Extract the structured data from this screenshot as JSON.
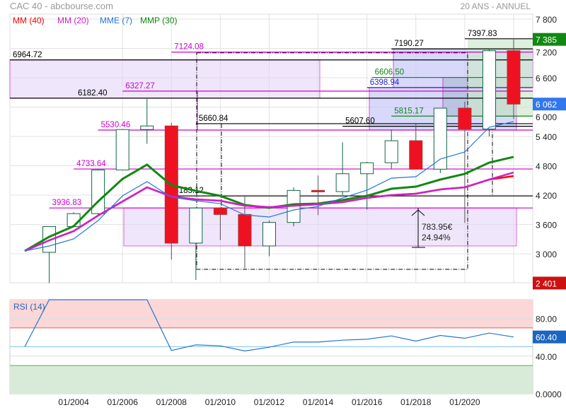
{
  "header": {
    "title": "CAC 40 - abcbourse.com",
    "period": "20 ANS - ANNUEL"
  },
  "legend": [
    {
      "label": "MM (40)",
      "color": "#ff0000"
    },
    {
      "label": "MM (20)",
      "color": "#cc22cc"
    },
    {
      "label": "MME (7)",
      "color": "#2277dd"
    },
    {
      "label": "MMP (30)",
      "color": "#118811"
    }
  ],
  "chart_data": [
    {
      "type": "candlestick",
      "title": "CAC 40",
      "yticks": [
        "7 800",
        "7 200",
        "6 600",
        "6 000",
        "5 400",
        "4 800",
        "4 200",
        "3 600",
        "3 000"
      ],
      "ytick_values": [
        7800,
        7200,
        6600,
        6000,
        5400,
        4800,
        4200,
        3600,
        3000
      ],
      "ylim": [
        2401,
        7900
      ],
      "xticks": [
        "01/2004",
        "01/2006",
        "01/2008",
        "01/2010",
        "01/2012",
        "01/2014",
        "01/2016",
        "01/2018",
        "01/2020"
      ],
      "grid": true,
      "candles": [
        {
          "year": 2003,
          "o": 3030,
          "h": 3560,
          "l": 2401,
          "c": 3557
        },
        {
          "year": 2004,
          "o": 3557,
          "h": 3850,
          "l": 3540,
          "c": 3821
        },
        {
          "year": 2005,
          "o": 3821,
          "h": 4740,
          "l": 3800,
          "c": 4715
        },
        {
          "year": 2006,
          "o": 4715,
          "h": 5541,
          "l": 4740,
          "c": 5541
        },
        {
          "year": 2007,
          "o": 5541,
          "h": 6168,
          "l": 5250,
          "c": 5614
        },
        {
          "year": 2008,
          "o": 5614,
          "h": 5680,
          "l": 2880,
          "c": 3218
        },
        {
          "year": 2009,
          "o": 3218,
          "h": 3936,
          "l": 2465,
          "c": 3936
        },
        {
          "year": 2010,
          "o": 3936,
          "h": 3950,
          "l": 3280,
          "c": 3804
        },
        {
          "year": 2011,
          "o": 3804,
          "h": 4170,
          "l": 2700,
          "c": 3160
        },
        {
          "year": 2012,
          "o": 3160,
          "h": 3680,
          "l": 2950,
          "c": 3641
        },
        {
          "year": 2013,
          "o": 3641,
          "h": 4360,
          "l": 3560,
          "c": 4296
        },
        {
          "year": 2014,
          "o": 4296,
          "h": 4600,
          "l": 3790,
          "c": 4272
        },
        {
          "year": 2015,
          "o": 4272,
          "h": 5280,
          "l": 4200,
          "c": 4637
        },
        {
          "year": 2016,
          "o": 4637,
          "h": 4880,
          "l": 3900,
          "c": 4862
        },
        {
          "year": 2017,
          "o": 4862,
          "h": 5540,
          "l": 4740,
          "c": 5312
        },
        {
          "year": 2018,
          "o": 5312,
          "h": 5660,
          "l": 4730,
          "c": 4730
        },
        {
          "year": 2019,
          "o": 4730,
          "h": 5978,
          "l": 4650,
          "c": 5978
        },
        {
          "year": 2020,
          "o": 5978,
          "h": 6110,
          "l": 3630,
          "c": 5551
        },
        {
          "year": 2021,
          "o": 5551,
          "h": 7190,
          "l": 5400,
          "c": 7153
        },
        {
          "year": 2022,
          "o": 7153,
          "h": 7385,
          "l": 5756,
          "c": 6062
        }
      ],
      "series": [
        {
          "name": "MMP (30)",
          "color": "#118811",
          "years": [
            2002,
            2003,
            2004,
            2005,
            2006,
            2007,
            2008,
            2009,
            2010,
            2011,
            2012,
            2013,
            2014,
            2015,
            2016,
            2017,
            2018,
            2019,
            2020,
            2021,
            2022
          ],
          "values": [
            3058,
            3347,
            3564,
            4070,
            4532,
            4822,
            4402,
            4287,
            4185,
            3998,
            3940,
            4012,
            4026,
            4099,
            4185,
            4330,
            4373,
            4518,
            4634,
            4865,
            4981
          ]
        },
        {
          "name": "MM (40)",
          "color": "#ff0000",
          "years": [
            2002,
            2003,
            2004,
            2005,
            2006,
            2007,
            2008,
            2009,
            2010,
            2011,
            2012,
            2013,
            2014,
            2015,
            2016,
            2017,
            2018,
            2019,
            2020,
            2021,
            2022
          ],
          "values": [
            3058,
            3275,
            3463,
            3781,
            4070,
            4359,
            4171,
            4113,
            4084,
            3983,
            3954,
            3983,
            4012,
            4055,
            4142,
            4200,
            4229,
            4316,
            4359,
            4518,
            4590
          ]
        },
        {
          "name": "MM (20)",
          "color": "#cc22cc",
          "years": [
            2002,
            2003,
            2004,
            2005,
            2006,
            2007,
            2008,
            2009,
            2010,
            2011,
            2012,
            2013,
            2014,
            2015,
            2016,
            2017,
            2018,
            2019,
            2020,
            2021,
            2022
          ],
          "values": [
            3058,
            3275,
            3463,
            3781,
            4070,
            4359,
            4171,
            4113,
            4084,
            3983,
            3954,
            3983,
            4012,
            4055,
            4142,
            4200,
            4229,
            4316,
            4359,
            4518,
            4663
          ]
        },
        {
          "name": "MME (7)",
          "color": "#2277dd",
          "years": [
            2002,
            2003,
            2004,
            2005,
            2006,
            2007,
            2008,
            2009,
            2010,
            2011,
            2012,
            2013,
            2014,
            2015,
            2016,
            2017,
            2018,
            2019,
            2020,
            2021,
            2022
          ],
          "values": [
            3058,
            3159,
            3304,
            3679,
            4185,
            4475,
            4157,
            4084,
            4026,
            3795,
            3752,
            3896,
            3969,
            4142,
            4301,
            4547,
            4576,
            4937,
            5082,
            5588,
            5704
          ]
        }
      ],
      "levels": [
        {
          "label": "6964.72",
          "value": 6964.72,
          "from": 2001.4,
          "color": "#000000"
        },
        {
          "label": "6182.40",
          "value": 6182.4,
          "from": 2001.4,
          "color": "#000000"
        },
        {
          "label": "7124.08",
          "value": 7124.08,
          "from": 2008,
          "color": "#cc00cc"
        },
        {
          "label": "6327.27",
          "value": 6327.27,
          "from": 2006,
          "color": "#cc00cc"
        },
        {
          "label": "5530.46",
          "value": 5530.46,
          "from": 2005,
          "color": "#cc00cc"
        },
        {
          "label": "5660.84",
          "value": 5660.84,
          "from": 2009,
          "color": "#000000"
        },
        {
          "label": "4733.64",
          "value": 4733.64,
          "from": 2004,
          "color": "#cc00cc"
        },
        {
          "label": "4183.12",
          "value": 4183.12,
          "from": 2008,
          "color": "#000000"
        },
        {
          "label": "3936.83",
          "value": 3936.83,
          "from": 2003,
          "color": "#cc00cc"
        },
        {
          "label": "7190.27",
          "value": 7190.27,
          "from": 2017,
          "color": "#000000"
        },
        {
          "label": "7397.83",
          "value": 7397.83,
          "from": 2020,
          "color": "#000000"
        },
        {
          "label": "6606.50",
          "value": 6606.5,
          "from": 2016.2,
          "color": "#118811"
        },
        {
          "label": "6398.94",
          "value": 6398.94,
          "from": 2016,
          "color": "#2222cc"
        },
        {
          "label": "5815.17",
          "value": 5815.17,
          "from": 2017,
          "color": "#118811"
        },
        {
          "label": "5607.60",
          "value": 5607.6,
          "from": 2015,
          "color": "#000000"
        }
      ],
      "annotation": {
        "amount": "783.95€",
        "percent": "24.94%"
      },
      "price_labels": [
        {
          "text": "7 385",
          "value": 7385,
          "color": "#118811"
        },
        {
          "text": "6 062",
          "value": 6062,
          "color": "#3377ee"
        },
        {
          "text": "2 401",
          "value": 2401,
          "color": "#cc1111"
        }
      ]
    },
    {
      "type": "line",
      "title": "RSI (14)",
      "ylim": [
        0,
        100
      ],
      "yticks": [
        "80.00",
        "40.00",
        "0.0000"
      ],
      "ytick_values": [
        80,
        40,
        0
      ],
      "overbought": 70,
      "oversold": 30,
      "mid": 50,
      "years": [
        2002,
        2003,
        2007,
        2008,
        2009,
        2010,
        2011,
        2012,
        2013,
        2014,
        2015,
        2016,
        2017,
        2018,
        2019,
        2020,
        2021,
        2022
      ],
      "values": [
        50,
        100,
        100,
        46,
        52,
        51,
        45.5,
        49.5,
        55,
        55,
        57,
        58,
        61.5,
        56,
        62,
        59,
        64.5,
        60.4
      ],
      "last_label": "60.40"
    }
  ]
}
